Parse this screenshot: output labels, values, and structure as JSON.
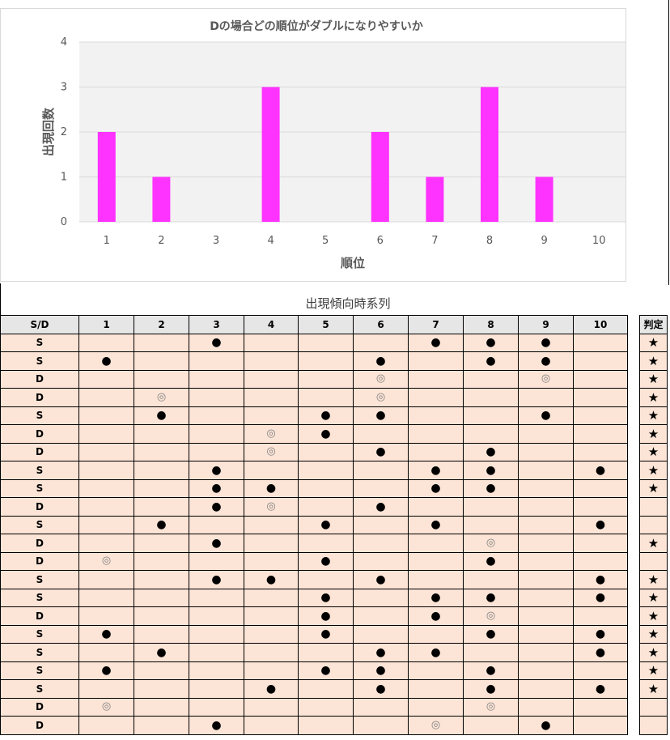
{
  "chart_data": {
    "type": "bar",
    "title": "Dの場合どの順位がダブルになりやすいか",
    "xlabel": "順位",
    "ylabel": "出現回数",
    "categories": [
      "1",
      "2",
      "3",
      "4",
      "5",
      "6",
      "7",
      "8",
      "9",
      "10"
    ],
    "values": [
      2,
      1,
      0,
      3,
      0,
      2,
      1,
      3,
      1,
      0
    ],
    "ylim": [
      0,
      4
    ],
    "yticks": [
      "0",
      "1",
      "2",
      "3",
      "4"
    ],
    "grid": true,
    "bar_color": "#ff33ff",
    "plot_background": "#f2f2f2"
  },
  "table": {
    "title": "出現傾向時系列",
    "headers": [
      "S/D",
      "1",
      "2",
      "3",
      "4",
      "5",
      "6",
      "7",
      "8",
      "9",
      "10"
    ],
    "verdict_header": "判定",
    "symbols": {
      "dot": "●",
      "circle": "◎",
      "star": "★"
    },
    "rows": [
      {
        "sd": "S",
        "cells": [
          "",
          "",
          "●",
          "",
          "",
          "",
          "●",
          "●",
          "●",
          ""
        ],
        "verdict": "★"
      },
      {
        "sd": "S",
        "cells": [
          "●",
          "",
          "",
          "",
          "",
          "●",
          "",
          "●",
          "●",
          ""
        ],
        "verdict": "★"
      },
      {
        "sd": "D",
        "cells": [
          "",
          "",
          "",
          "",
          "",
          "◎",
          "",
          "",
          "◎",
          ""
        ],
        "verdict": "★"
      },
      {
        "sd": "D",
        "cells": [
          "",
          "◎",
          "",
          "",
          "",
          "◎",
          "",
          "",
          "",
          ""
        ],
        "verdict": "★"
      },
      {
        "sd": "S",
        "cells": [
          "",
          "●",
          "",
          "",
          "●",
          "●",
          "",
          "",
          "●",
          ""
        ],
        "verdict": "★"
      },
      {
        "sd": "D",
        "cells": [
          "",
          "",
          "",
          "◎",
          "●",
          "",
          "",
          "",
          "",
          ""
        ],
        "verdict": "★"
      },
      {
        "sd": "D",
        "cells": [
          "",
          "",
          "",
          "◎",
          "",
          "●",
          "",
          "●",
          "",
          ""
        ],
        "verdict": "★"
      },
      {
        "sd": "S",
        "cells": [
          "",
          "",
          "●",
          "",
          "",
          "",
          "●",
          "●",
          "",
          "●"
        ],
        "verdict": "★"
      },
      {
        "sd": "S",
        "cells": [
          "",
          "",
          "●",
          "●",
          "",
          "",
          "●",
          "●",
          "",
          ""
        ],
        "verdict": "★"
      },
      {
        "sd": "D",
        "cells": [
          "",
          "",
          "●",
          "◎",
          "",
          "●",
          "",
          "",
          "",
          ""
        ],
        "verdict": ""
      },
      {
        "sd": "S",
        "cells": [
          "",
          "●",
          "",
          "",
          "●",
          "",
          "●",
          "",
          "",
          "●"
        ],
        "verdict": ""
      },
      {
        "sd": "D",
        "cells": [
          "",
          "",
          "●",
          "",
          "",
          "",
          "",
          "◎",
          "",
          ""
        ],
        "verdict": "★"
      },
      {
        "sd": "D",
        "cells": [
          "◎",
          "",
          "",
          "",
          "●",
          "",
          "",
          "●",
          "",
          ""
        ],
        "verdict": ""
      },
      {
        "sd": "S",
        "cells": [
          "",
          "",
          "●",
          "●",
          "",
          "●",
          "",
          "",
          "",
          "●"
        ],
        "verdict": "★"
      },
      {
        "sd": "S",
        "cells": [
          "",
          "",
          "",
          "",
          "●",
          "",
          "●",
          "●",
          "",
          "●"
        ],
        "verdict": "★"
      },
      {
        "sd": "D",
        "cells": [
          "",
          "",
          "",
          "",
          "●",
          "",
          "●",
          "◎",
          "",
          ""
        ],
        "verdict": "★"
      },
      {
        "sd": "S",
        "cells": [
          "●",
          "",
          "",
          "",
          "●",
          "",
          "",
          "●",
          "",
          "●"
        ],
        "verdict": "★"
      },
      {
        "sd": "S",
        "cells": [
          "",
          "●",
          "",
          "",
          "",
          "●",
          "●",
          "",
          "",
          "●"
        ],
        "verdict": "★"
      },
      {
        "sd": "S",
        "cells": [
          "●",
          "",
          "",
          "",
          "●",
          "●",
          "",
          "●",
          "",
          ""
        ],
        "verdict": "★"
      },
      {
        "sd": "S",
        "cells": [
          "",
          "",
          "",
          "●",
          "",
          "●",
          "",
          "●",
          "",
          "●"
        ],
        "verdict": "★"
      },
      {
        "sd": "D",
        "cells": [
          "◎",
          "",
          "",
          "",
          "",
          "",
          "",
          "◎",
          "",
          ""
        ],
        "verdict": ""
      },
      {
        "sd": "D",
        "cells": [
          "",
          "",
          "●",
          "",
          "",
          "",
          "◎",
          "",
          "●",
          ""
        ],
        "verdict": ""
      }
    ]
  }
}
